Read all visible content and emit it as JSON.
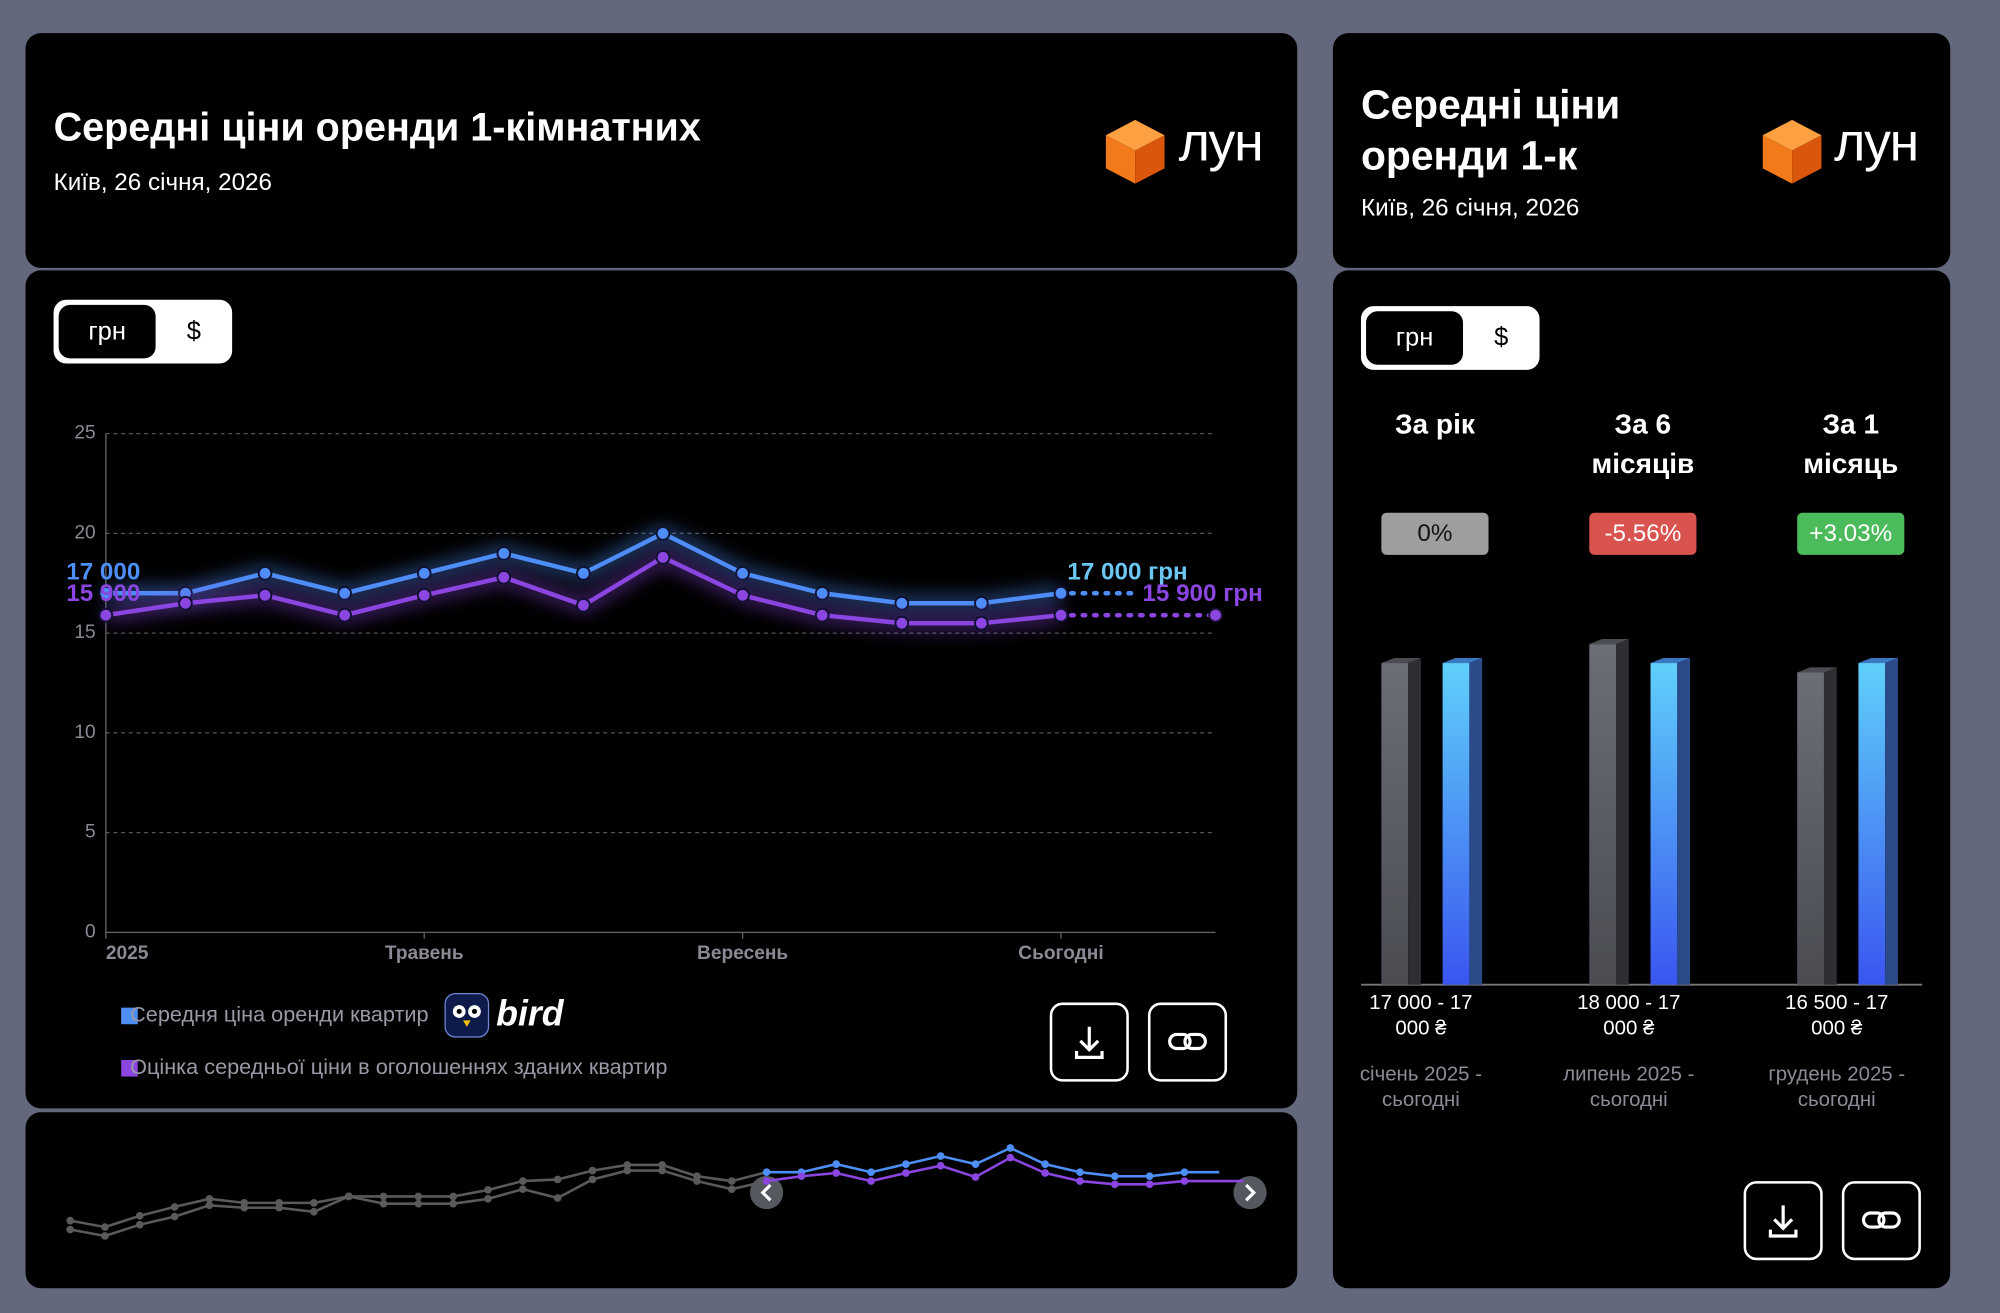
{
  "header": {
    "title": "Середні ціни оренди 1-кімнатних",
    "subtitle": "Київ, 26 січня, 2026",
    "brand": "лун"
  },
  "side_header": {
    "title": "Середні ціни оренди 1-к",
    "subtitle": "Київ, 26 січня, 2026",
    "brand": "лун"
  },
  "currency_toggle": [
    "грн",
    "$"
  ],
  "legend_badge": "bird",
  "chart_data": [
    {
      "type": "line",
      "categories": [
        "2025",
        null,
        null,
        null,
        "Травень",
        null,
        null,
        null,
        "Вересень",
        null,
        null,
        null,
        "Сьогодні"
      ],
      "series": [
        {
          "name": "Середня ціна оренди квартир",
          "color": "#4d8ef7",
          "values": [
            17.0,
            17.0,
            18.0,
            17.0,
            18.0,
            19.0,
            18.0,
            20.0,
            18.0,
            17.0,
            16.5,
            16.5,
            17.0
          ],
          "value_labels": [
            "17 000",
            null,
            null,
            null,
            null,
            null,
            null,
            null,
            null,
            null,
            null,
            null,
            "17 000 грн"
          ]
        },
        {
          "name": "Оцінка середньої ціни в оголошеннях зданих квартир",
          "color": "#8b45e0",
          "values": [
            15.9,
            16.5,
            16.9,
            15.9,
            16.9,
            17.8,
            16.4,
            18.8,
            16.9,
            15.9,
            15.5,
            15.5,
            15.9
          ],
          "value_labels": [
            "15 900",
            null,
            null,
            null,
            null,
            null,
            null,
            null,
            null,
            null,
            null,
            null,
            "15 900 грн"
          ]
        }
      ],
      "ylim": [
        0,
        25
      ],
      "yticks": [
        0,
        5,
        10,
        15,
        20,
        25
      ],
      "grid": true
    },
    {
      "type": "bar",
      "categories": [
        "За рік",
        "За 6 місяців",
        "За 1 місяць"
      ],
      "changes": [
        "0%",
        "-5.56%",
        "+3.03%"
      ],
      "change_colors": [
        "#9e9e9e",
        "#d9534f",
        "#4cbb5c"
      ],
      "series": [
        {
          "color": "#6b6e76",
          "values": [
            17000,
            18000,
            16500
          ]
        },
        {
          "color": "#5fd0fa",
          "values": [
            17000,
            17000,
            17000
          ]
        }
      ],
      "range_labels": [
        "17 000 - 17 000 ₴",
        "18 000 - 17 000 ₴",
        "16 500 - 17 000 ₴"
      ],
      "period_labels": [
        "січень 2025 - сьогодні",
        "липень 2025 - сьогодні",
        "грудень 2025 - сьогодні"
      ]
    },
    {
      "type": "line",
      "series": [
        {
          "color": "#5a5a5a",
          "values": [
            11.0,
            10.2,
            11.6,
            12.7,
            13.7,
            13.2,
            13.2,
            13.2,
            14.0,
            14.0,
            14.0,
            14.0,
            14.8,
            15.9,
            16.1,
            17.2,
            17.9,
            17.9,
            16.5,
            15.9
          ]
        },
        {
          "color": "#5a5a5a",
          "values": [
            9.9,
            9.1,
            10.5,
            11.5,
            12.9,
            12.6,
            12.6,
            12.1,
            14.0,
            13.1,
            13.1,
            13.1,
            13.7,
            14.9,
            13.8,
            16.1,
            17.2,
            17.2,
            15.9,
            14.9
          ]
        }
      ]
    }
  ]
}
